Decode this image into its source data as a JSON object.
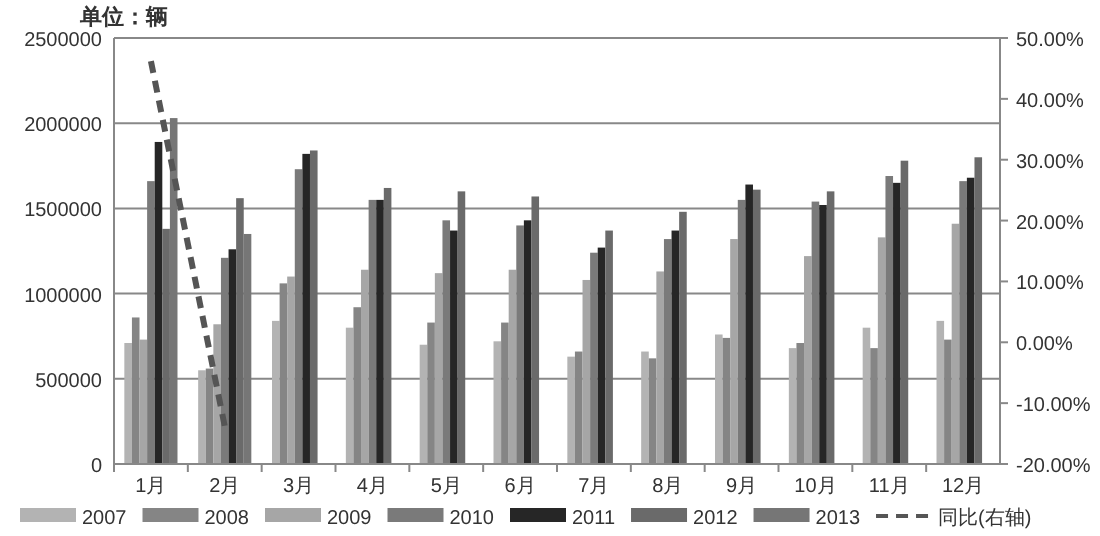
{
  "chart_data": {
    "type": "bar",
    "ylabel": "单位：辆",
    "categories": [
      "1月",
      "2月",
      "3月",
      "4月",
      "5月",
      "6月",
      "7月",
      "8月",
      "9月",
      "10月",
      "11月",
      "12月"
    ],
    "series": [
      {
        "name": "2007",
        "color": "#b3b3b3",
        "values": [
          710000,
          550000,
          840000,
          800000,
          700000,
          720000,
          630000,
          660000,
          760000,
          680000,
          800000,
          840000
        ]
      },
      {
        "name": "2008",
        "color": "#858585",
        "values": [
          860000,
          560000,
          1060000,
          920000,
          830000,
          830000,
          660000,
          620000,
          740000,
          710000,
          680000,
          730000
        ]
      },
      {
        "name": "2009",
        "color": "#a6a6a6",
        "values": [
          730000,
          820000,
          1100000,
          1140000,
          1120000,
          1140000,
          1080000,
          1130000,
          1320000,
          1220000,
          1330000,
          1410000
        ]
      },
      {
        "name": "2010",
        "color": "#7a7a7a",
        "values": [
          1660000,
          1210000,
          1730000,
          1550000,
          1430000,
          1400000,
          1240000,
          1320000,
          1550000,
          1540000,
          1690000,
          1660000
        ]
      },
      {
        "name": "2011",
        "color": "#262626",
        "values": [
          1890000,
          1260000,
          1820000,
          1550000,
          1370000,
          1430000,
          1270000,
          1370000,
          1640000,
          1520000,
          1650000,
          1680000
        ]
      },
      {
        "name": "2012",
        "color": "#6a6a6a",
        "values": [
          1380000,
          1560000,
          1840000,
          1620000,
          1600000,
          1570000,
          1370000,
          1480000,
          1610000,
          1600000,
          1780000,
          1800000
        ]
      },
      {
        "name": "2013",
        "color": "#767676",
        "values": [
          2030000,
          1350000,
          null,
          null,
          null,
          null,
          null,
          null,
          null,
          null,
          null,
          null
        ]
      },
      {
        "name": "同比(右轴)",
        "type": "line",
        "axis": "y2",
        "color": "#555555",
        "line_style": "dashed",
        "values": [
          46.2,
          -13.8,
          null,
          null,
          null,
          null,
          null,
          null,
          null,
          null,
          null,
          null
        ]
      }
    ],
    "ylim": [
      0,
      2500000
    ],
    "yticks": [
      0,
      500000,
      1000000,
      1500000,
      2000000,
      2500000
    ],
    "y2lim": [
      -20,
      50
    ],
    "y2ticks": [
      {
        "value": -20,
        "label": "-20.00%"
      },
      {
        "value": -10,
        "label": "-10.00%"
      },
      {
        "value": 0,
        "label": "0.00%"
      },
      {
        "value": 10,
        "label": "10.00%"
      },
      {
        "value": 20,
        "label": "20.00%"
      },
      {
        "value": 30,
        "label": "30.00%"
      },
      {
        "value": 40,
        "label": "40.00%"
      },
      {
        "value": 50,
        "label": "50.00%"
      }
    ],
    "grid": "y",
    "legend": "bottom"
  }
}
